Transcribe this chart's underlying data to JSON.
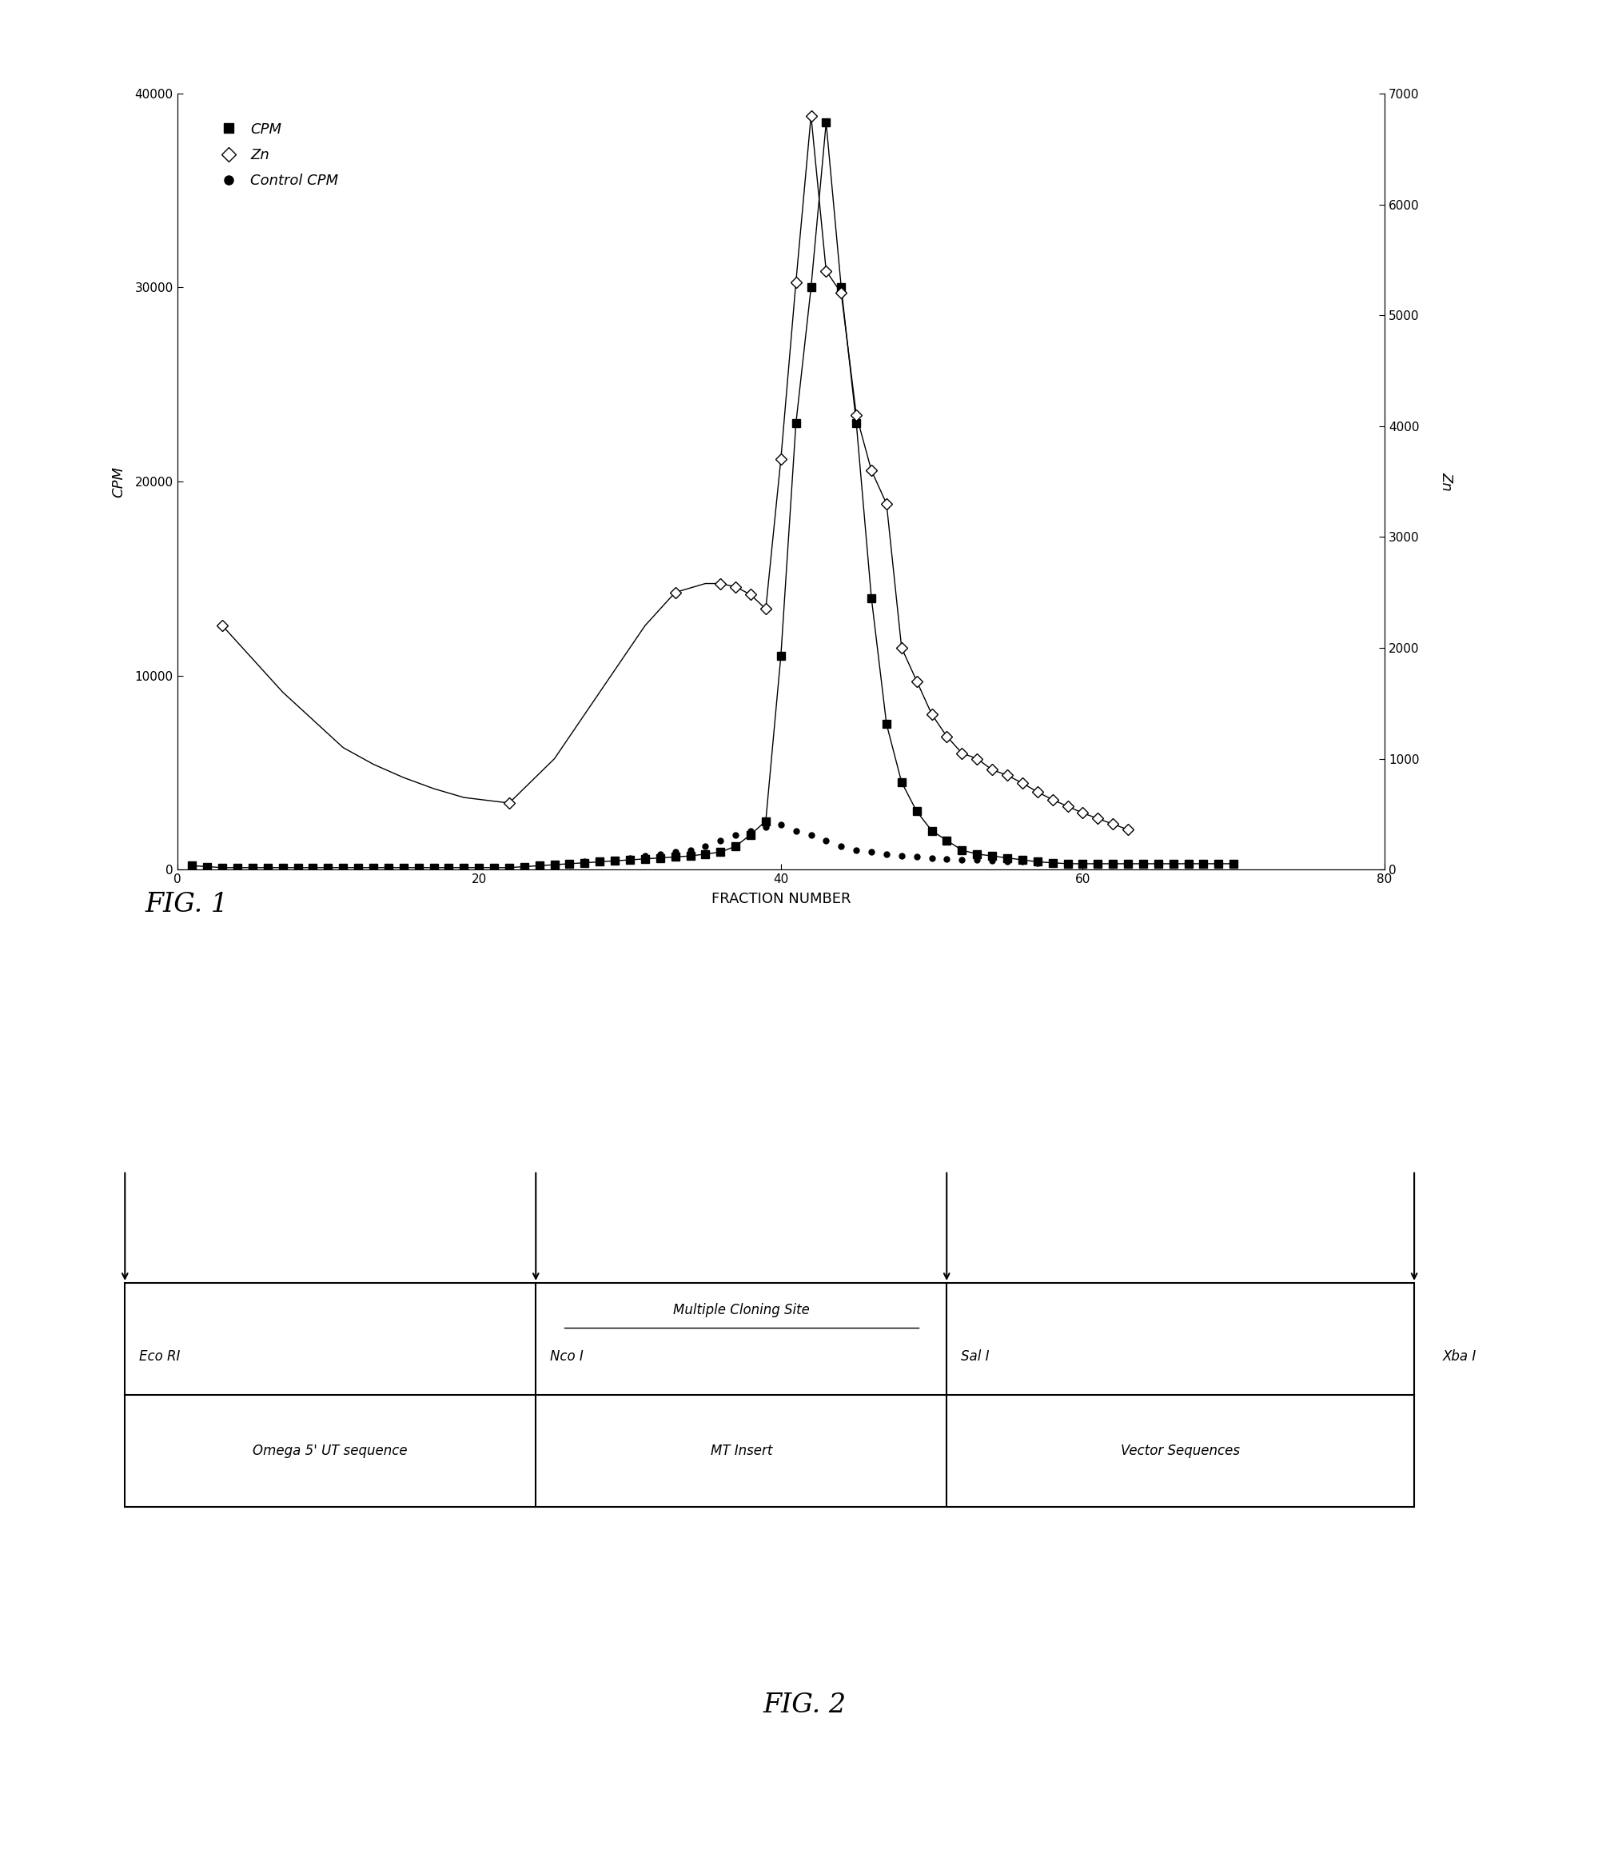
{
  "xlabel": "FRACTION NUMBER",
  "ylabel_left": "CPM",
  "ylabel_right": "Zn",
  "xlim": [
    0,
    80
  ],
  "ylim_left": [
    0,
    40000
  ],
  "ylim_right": [
    0,
    7000
  ],
  "yticks_left": [
    0,
    10000,
    20000,
    30000,
    40000
  ],
  "yticks_right": [
    0,
    1000,
    2000,
    3000,
    4000,
    5000,
    6000,
    7000
  ],
  "xticks": [
    0,
    20,
    40,
    60,
    80
  ],
  "cpm_x": [
    1,
    2,
    3,
    4,
    5,
    6,
    7,
    8,
    9,
    10,
    11,
    12,
    13,
    14,
    15,
    16,
    17,
    18,
    19,
    20,
    21,
    22,
    23,
    24,
    25,
    26,
    27,
    28,
    29,
    30,
    31,
    32,
    33,
    34,
    35,
    36,
    37,
    38,
    39,
    40,
    41,
    42,
    43,
    44,
    45,
    46,
    47,
    48,
    49,
    50,
    51,
    52,
    53,
    54,
    55,
    56,
    57,
    58,
    59,
    60,
    61,
    62,
    63,
    64,
    65,
    66,
    67,
    68,
    69,
    70
  ],
  "cpm_y": [
    200,
    150,
    100,
    100,
    100,
    100,
    100,
    100,
    100,
    100,
    100,
    100,
    100,
    100,
    100,
    100,
    100,
    100,
    100,
    100,
    100,
    100,
    150,
    200,
    250,
    300,
    350,
    400,
    450,
    500,
    550,
    600,
    650,
    700,
    800,
    900,
    1200,
    1800,
    2500,
    11000,
    23000,
    30000,
    38500,
    30000,
    23000,
    14000,
    7500,
    4500,
    3000,
    2000,
    1500,
    1000,
    800,
    700,
    600,
    500,
    400,
    350,
    300,
    300,
    300,
    300,
    300,
    300,
    300,
    300,
    300,
    300,
    300,
    300
  ],
  "zn_x": [
    3,
    22,
    33,
    36,
    37,
    38,
    39,
    40,
    41,
    42,
    43,
    44,
    45,
    46,
    47,
    48,
    49,
    50,
    51,
    52,
    53,
    54,
    55,
    56,
    57,
    58,
    59,
    60,
    61,
    62,
    63
  ],
  "zn_y": [
    2200,
    600,
    2500,
    2580,
    2550,
    2480,
    2350,
    3700,
    5300,
    6800,
    5400,
    5200,
    4100,
    3600,
    3300,
    2000,
    1700,
    1400,
    1200,
    1050,
    1000,
    900,
    850,
    780,
    700,
    630,
    570,
    510,
    460,
    410,
    360
  ],
  "zn_line_x": [
    3,
    5,
    7,
    9,
    11,
    13,
    15,
    17,
    19,
    22,
    25,
    27,
    29,
    31,
    33,
    35,
    36,
    37,
    38,
    39,
    40,
    41,
    42,
    43,
    44,
    45,
    46,
    47,
    48,
    49,
    50,
    51,
    52,
    53,
    54,
    55,
    56,
    57,
    58,
    59,
    60,
    61,
    62,
    63
  ],
  "zn_line_y": [
    2200,
    1900,
    1600,
    1350,
    1100,
    950,
    830,
    730,
    650,
    600,
    1000,
    1400,
    1800,
    2200,
    2500,
    2580,
    2580,
    2550,
    2480,
    2350,
    3700,
    5300,
    6800,
    5400,
    5200,
    4100,
    3600,
    3300,
    2000,
    1700,
    1400,
    1200,
    1050,
    1000,
    900,
    850,
    780,
    700,
    630,
    570,
    510,
    460,
    410,
    360
  ],
  "ctrl_x": [
    1,
    2,
    3,
    4,
    5,
    6,
    7,
    8,
    9,
    10,
    11,
    12,
    13,
    14,
    15,
    16,
    17,
    18,
    19,
    20,
    21,
    22,
    23,
    24,
    25,
    26,
    27,
    28,
    29,
    30,
    31,
    32,
    33,
    34,
    35,
    36,
    37,
    38,
    39,
    40,
    41,
    42,
    43,
    44,
    45,
    46,
    47,
    48,
    49,
    50,
    51,
    52,
    53,
    54,
    55,
    56,
    57,
    58,
    59,
    60,
    61,
    62,
    63,
    64,
    65,
    66,
    67,
    68,
    69,
    70
  ],
  "ctrl_y": [
    100,
    100,
    100,
    100,
    100,
    100,
    100,
    100,
    100,
    100,
    100,
    100,
    100,
    100,
    100,
    100,
    100,
    100,
    100,
    100,
    100,
    100,
    100,
    150,
    200,
    300,
    400,
    450,
    500,
    600,
    700,
    800,
    900,
    1000,
    1200,
    1500,
    1800,
    2000,
    2200,
    2300,
    2000,
    1800,
    1500,
    1200,
    1000,
    900,
    800,
    700,
    650,
    600,
    550,
    500,
    500,
    450,
    400,
    400,
    350,
    350,
    300,
    300,
    300,
    300,
    300,
    300,
    300,
    300,
    300,
    300,
    300,
    300
  ],
  "bg_color": "#ffffff",
  "fig1_label": "FIG. 1",
  "fig2_label": "FIG. 2",
  "section1_label": "Omega 5' UT sequence",
  "section2_label": "MT Insert",
  "section3_label": "Vector Sequences",
  "top_label": "Multiple Cloning Site",
  "arrow1_label": "Eco RI",
  "arrow2_label": "Nco I",
  "arrow3_label": "Sal I",
  "arrow4_label": "Xba I"
}
